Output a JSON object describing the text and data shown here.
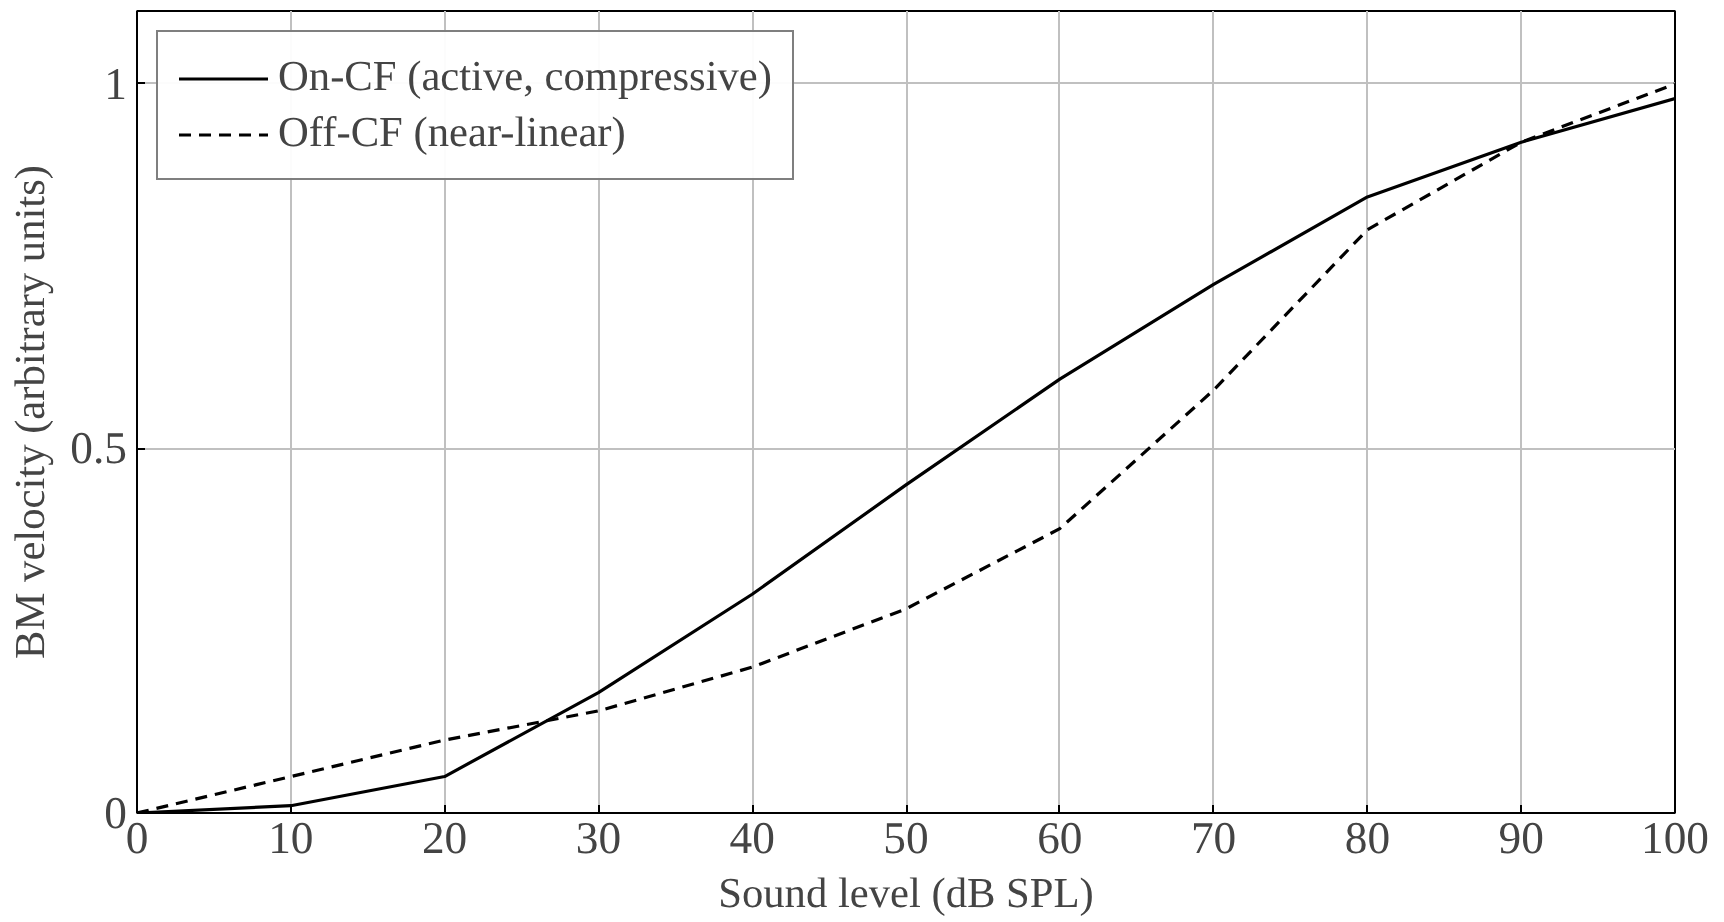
{
  "chart_data": {
    "type": "line",
    "xlabel": "Sound level (dB SPL)",
    "ylabel": "BM velocity (arbitrary units)",
    "x": [
      0,
      10,
      20,
      30,
      40,
      50,
      60,
      70,
      80,
      90,
      100
    ],
    "series": [
      {
        "name": "On-CF (active, compressive)",
        "color": "#000000",
        "line_style": "solid",
        "values": [
          0,
          0.01,
          0.05,
          0.165,
          0.3,
          0.45,
          0.595,
          0.725,
          0.845,
          0.92,
          0.98
        ]
      },
      {
        "name": "Off-CF (near-linear)",
        "color": "#000000",
        "line_style": "dashed",
        "values": [
          0,
          0.05,
          0.1,
          0.14,
          0.2,
          0.28,
          0.39,
          0.58,
          0.8,
          0.92,
          1.0
        ]
      }
    ],
    "xlim": [
      0,
      100
    ],
    "ylim": [
      0,
      1.1
    ],
    "xticks": [
      0,
      10,
      20,
      30,
      40,
      50,
      60,
      70,
      80,
      90,
      100
    ],
    "yticks": [
      0,
      0.5,
      1
    ],
    "grid": true,
    "legend": "top left",
    "marker": "none"
  }
}
